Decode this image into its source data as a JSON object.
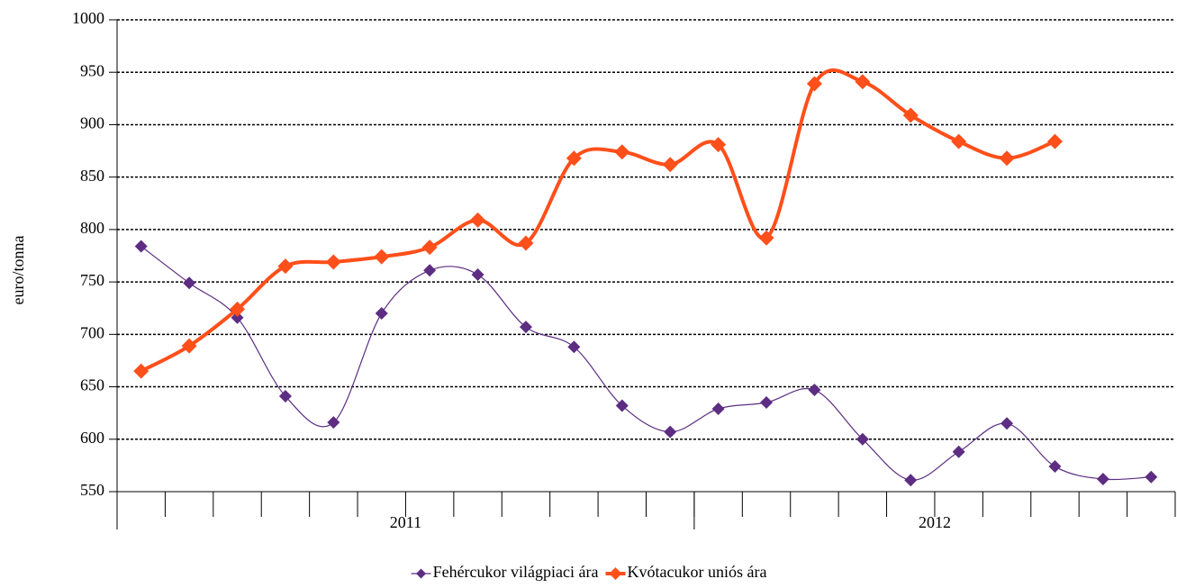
{
  "chart_data": {
    "type": "line",
    "y_label": "euro/tonna",
    "categories": [
      null,
      null,
      null,
      null,
      null,
      null,
      null,
      null,
      null,
      null,
      null,
      null,
      null,
      null,
      null,
      null,
      null,
      null,
      null,
      null,
      null,
      null
    ],
    "groups": [
      {
        "label": "2011",
        "span": 12
      },
      {
        "label": "2012",
        "span": 10
      }
    ],
    "series": [
      {
        "name": "Fehércukor világpiaci ára",
        "color": "#5c2d82",
        "values": [
          784,
          749,
          716,
          641,
          616,
          720,
          761,
          757,
          707,
          688,
          632,
          607,
          629,
          635,
          647,
          600,
          561,
          588,
          615,
          574,
          562,
          564
        ]
      },
      {
        "name": "Kvótacukor uniós ára",
        "color": "#ff4f1a",
        "values": [
          665,
          689,
          724,
          765,
          769,
          774,
          783,
          809,
          787,
          868,
          874,
          862,
          881,
          792,
          939,
          941,
          909,
          884,
          868,
          884,
          null,
          null
        ]
      }
    ],
    "ylim": [
      550,
      1000
    ],
    "yticks": [
      550,
      600,
      650,
      700,
      750,
      800,
      850,
      900,
      950,
      1000
    ],
    "grid": true,
    "smooth": true,
    "legend": "bottom"
  }
}
